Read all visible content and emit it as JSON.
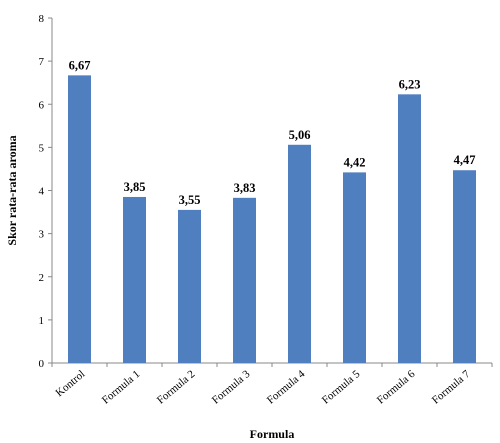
{
  "chart_data": {
    "type": "bar",
    "categories": [
      "Kontrol",
      "Formula 1",
      "Formula 2",
      "Formula 3",
      "Formula 4",
      "Formula 5",
      "Formula 6",
      "Formula 7"
    ],
    "values": [
      6.67,
      3.85,
      3.55,
      3.83,
      5.06,
      4.42,
      6.23,
      4.47
    ],
    "value_labels": [
      "6,67",
      "3,85",
      "3,55",
      "3,83",
      "5,06",
      "4,42",
      "6,23",
      "4,47"
    ],
    "yticks": [
      "0",
      "1",
      "2",
      "3",
      "4",
      "5",
      "6",
      "7",
      "8"
    ],
    "title": "",
    "xlabel": "Formula",
    "ylabel": "Skor rata-rata aroma",
    "ylim": [
      0,
      8
    ],
    "grid": false,
    "bar_color": "#4F7FBE"
  }
}
